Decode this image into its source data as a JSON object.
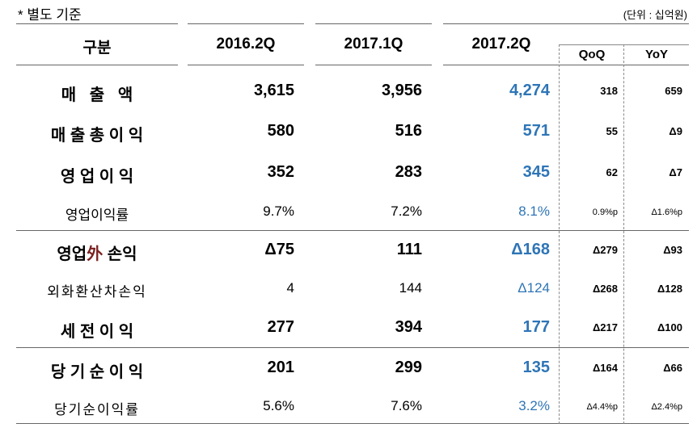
{
  "note": "* 별도 기준",
  "unit": "(단위 : 십억원)",
  "header": {
    "category": "구분",
    "col1": "2016.2Q",
    "col2": "2017.1Q",
    "col3": "2017.2Q",
    "qoq": "QoQ",
    "yoy": "YoY"
  },
  "rows": [
    {
      "label": "매   출   액",
      "v1": "3,615",
      "v2": "3,956",
      "v3": "4,274",
      "qoq": "318",
      "yoy": "659",
      "style": "major"
    },
    {
      "label": "매 출 총 이 익",
      "v1": "580",
      "v2": "516",
      "v3": "571",
      "qoq": "55",
      "yoy": "Δ9",
      "style": "major"
    },
    {
      "label": "영 업 이 익",
      "v1": "352",
      "v2": "283",
      "v3": "345",
      "qoq": "62",
      "yoy": "Δ7",
      "style": "major"
    },
    {
      "label": "영업이익률",
      "v1": "9.7%",
      "v2": "7.2%",
      "v3": "8.1%",
      "qoq": "0.9%p",
      "yoy": "Δ1.6%p",
      "style": "minor"
    },
    {
      "label_a": "영업",
      "label_b": "外",
      "label_c": " 손익",
      "v1": "Δ75",
      "v2": "111",
      "v3": "Δ168",
      "qoq": "Δ279",
      "yoy": "Δ93",
      "style": "major"
    },
    {
      "label": "외화환산차손익",
      "v1": "4",
      "v2": "144",
      "v3": "Δ124",
      "qoq": "Δ268",
      "yoy": "Δ128",
      "style": "minor"
    },
    {
      "label": "세 전 이 익",
      "v1": "277",
      "v2": "394",
      "v3": "177",
      "qoq": "Δ217",
      "yoy": "Δ100",
      "style": "major"
    },
    {
      "label": "당 기 순 이 익",
      "v1": "201",
      "v2": "299",
      "v3": "135",
      "qoq": "Δ164",
      "yoy": "Δ66",
      "style": "major"
    },
    {
      "label": "당기순이익률",
      "v1": "5.6%",
      "v2": "7.6%",
      "v3": "3.2%",
      "qoq": "Δ4.4%p",
      "yoy": "Δ2.4%p",
      "style": "minor"
    }
  ]
}
